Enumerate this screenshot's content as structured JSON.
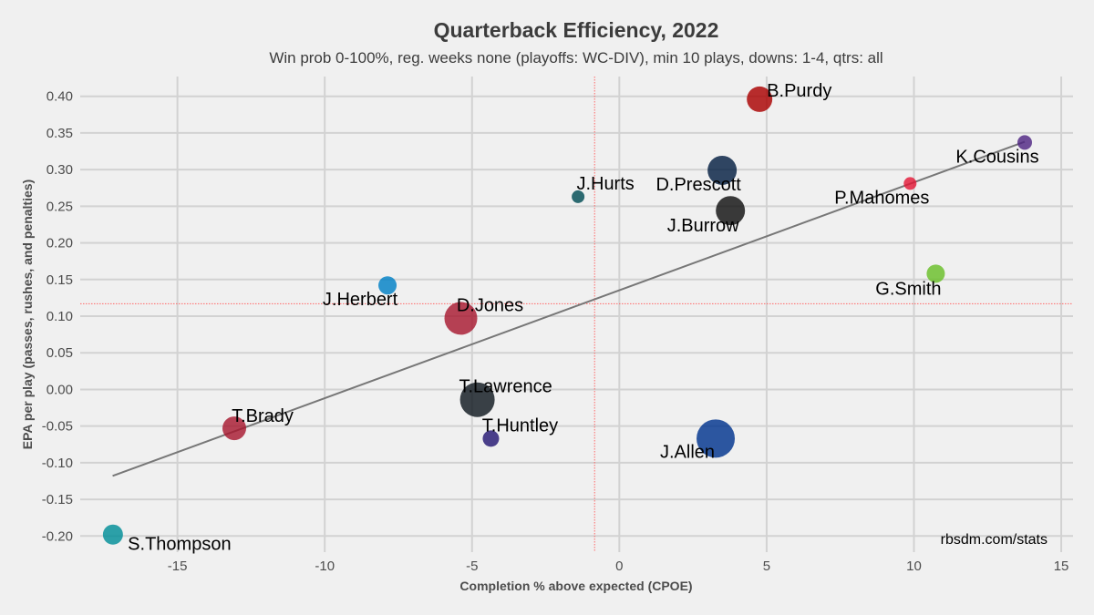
{
  "chart_data": {
    "type": "scatter",
    "title": "Quarterback Efficiency, 2022",
    "subtitle": "Win prob 0-100%, reg. weeks none (playoffs: WC-DIV), min 10 plays, downs: 1-4, qtrs: all",
    "xlabel": "Completion % above expected (CPOE)",
    "ylabel": "EPA per play (passes, rushes, and penalties)",
    "caption": "rbsdm.com/stats",
    "xlim": [
      -18.3,
      15.4
    ],
    "ylim": [
      -0.222,
      0.427
    ],
    "xticks": [
      -15,
      -10,
      -5,
      0,
      5,
      10,
      15
    ],
    "yticks": [
      0.4,
      0.35,
      0.3,
      0.25,
      0.2,
      0.15,
      0.1,
      0.05,
      0.0,
      -0.05,
      -0.1,
      -0.15,
      -0.2
    ],
    "xtick_labels": [
      "-15",
      "-10",
      "-5",
      "0",
      "5",
      "10",
      "15"
    ],
    "ytick_labels": [
      "0.40",
      "0.35",
      "0.30",
      "0.25",
      "0.20",
      "0.15",
      "0.10",
      "0.05",
      "0.00",
      "-0.05",
      "-0.10",
      "-0.15",
      "-0.20"
    ],
    "grid": true,
    "reference_lines": {
      "x": -0.84,
      "y": 0.117,
      "color": "#ff6666"
    },
    "trend_line": {
      "x": [
        -17.2,
        13.76
      ],
      "y": [
        -0.118,
        0.338
      ],
      "color": "#777777"
    },
    "points": [
      {
        "name": "B.Purdy",
        "x": 4.76,
        "y": 0.396,
        "size": 14,
        "color": "#aa0000"
      },
      {
        "name": "K.Cousins",
        "x": 13.76,
        "y": 0.337,
        "size": 8,
        "color": "#4f2683"
      },
      {
        "name": "P.Mahomes",
        "x": 9.87,
        "y": 0.281,
        "size": 7,
        "color": "#e31837"
      },
      {
        "name": "D.Prescott",
        "x": 3.49,
        "y": 0.299,
        "size": 16,
        "color": "#041e42"
      },
      {
        "name": "J.Hurts",
        "x": -1.4,
        "y": 0.263,
        "size": 7,
        "color": "#004c54"
      },
      {
        "name": "J.Burrow",
        "x": 3.77,
        "y": 0.244,
        "size": 16,
        "color": "#101010"
      },
      {
        "name": "G.Smith",
        "x": 10.74,
        "y": 0.158,
        "size": 10,
        "color": "#69be28"
      },
      {
        "name": "J.Herbert",
        "x": -7.87,
        "y": 0.142,
        "size": 10,
        "color": "#0080c6"
      },
      {
        "name": "D.Jones",
        "x": -5.38,
        "y": 0.097,
        "size": 18,
        "color": "#a71930"
      },
      {
        "name": "T.Lawrence",
        "x": -4.82,
        "y": -0.014,
        "size": 19,
        "color": "#101820"
      },
      {
        "name": "T.Brady",
        "x": -13.07,
        "y": -0.053,
        "size": 13,
        "color": "#a71930"
      },
      {
        "name": "T.Huntley",
        "x": -4.36,
        "y": -0.067,
        "size": 9,
        "color": "#241773"
      },
      {
        "name": "J.Allen",
        "x": 3.27,
        "y": -0.067,
        "size": 21,
        "color": "#00338d"
      },
      {
        "name": "S.Thompson",
        "x": -17.19,
        "y": -0.198,
        "size": 11,
        "color": "#008e97"
      }
    ]
  }
}
